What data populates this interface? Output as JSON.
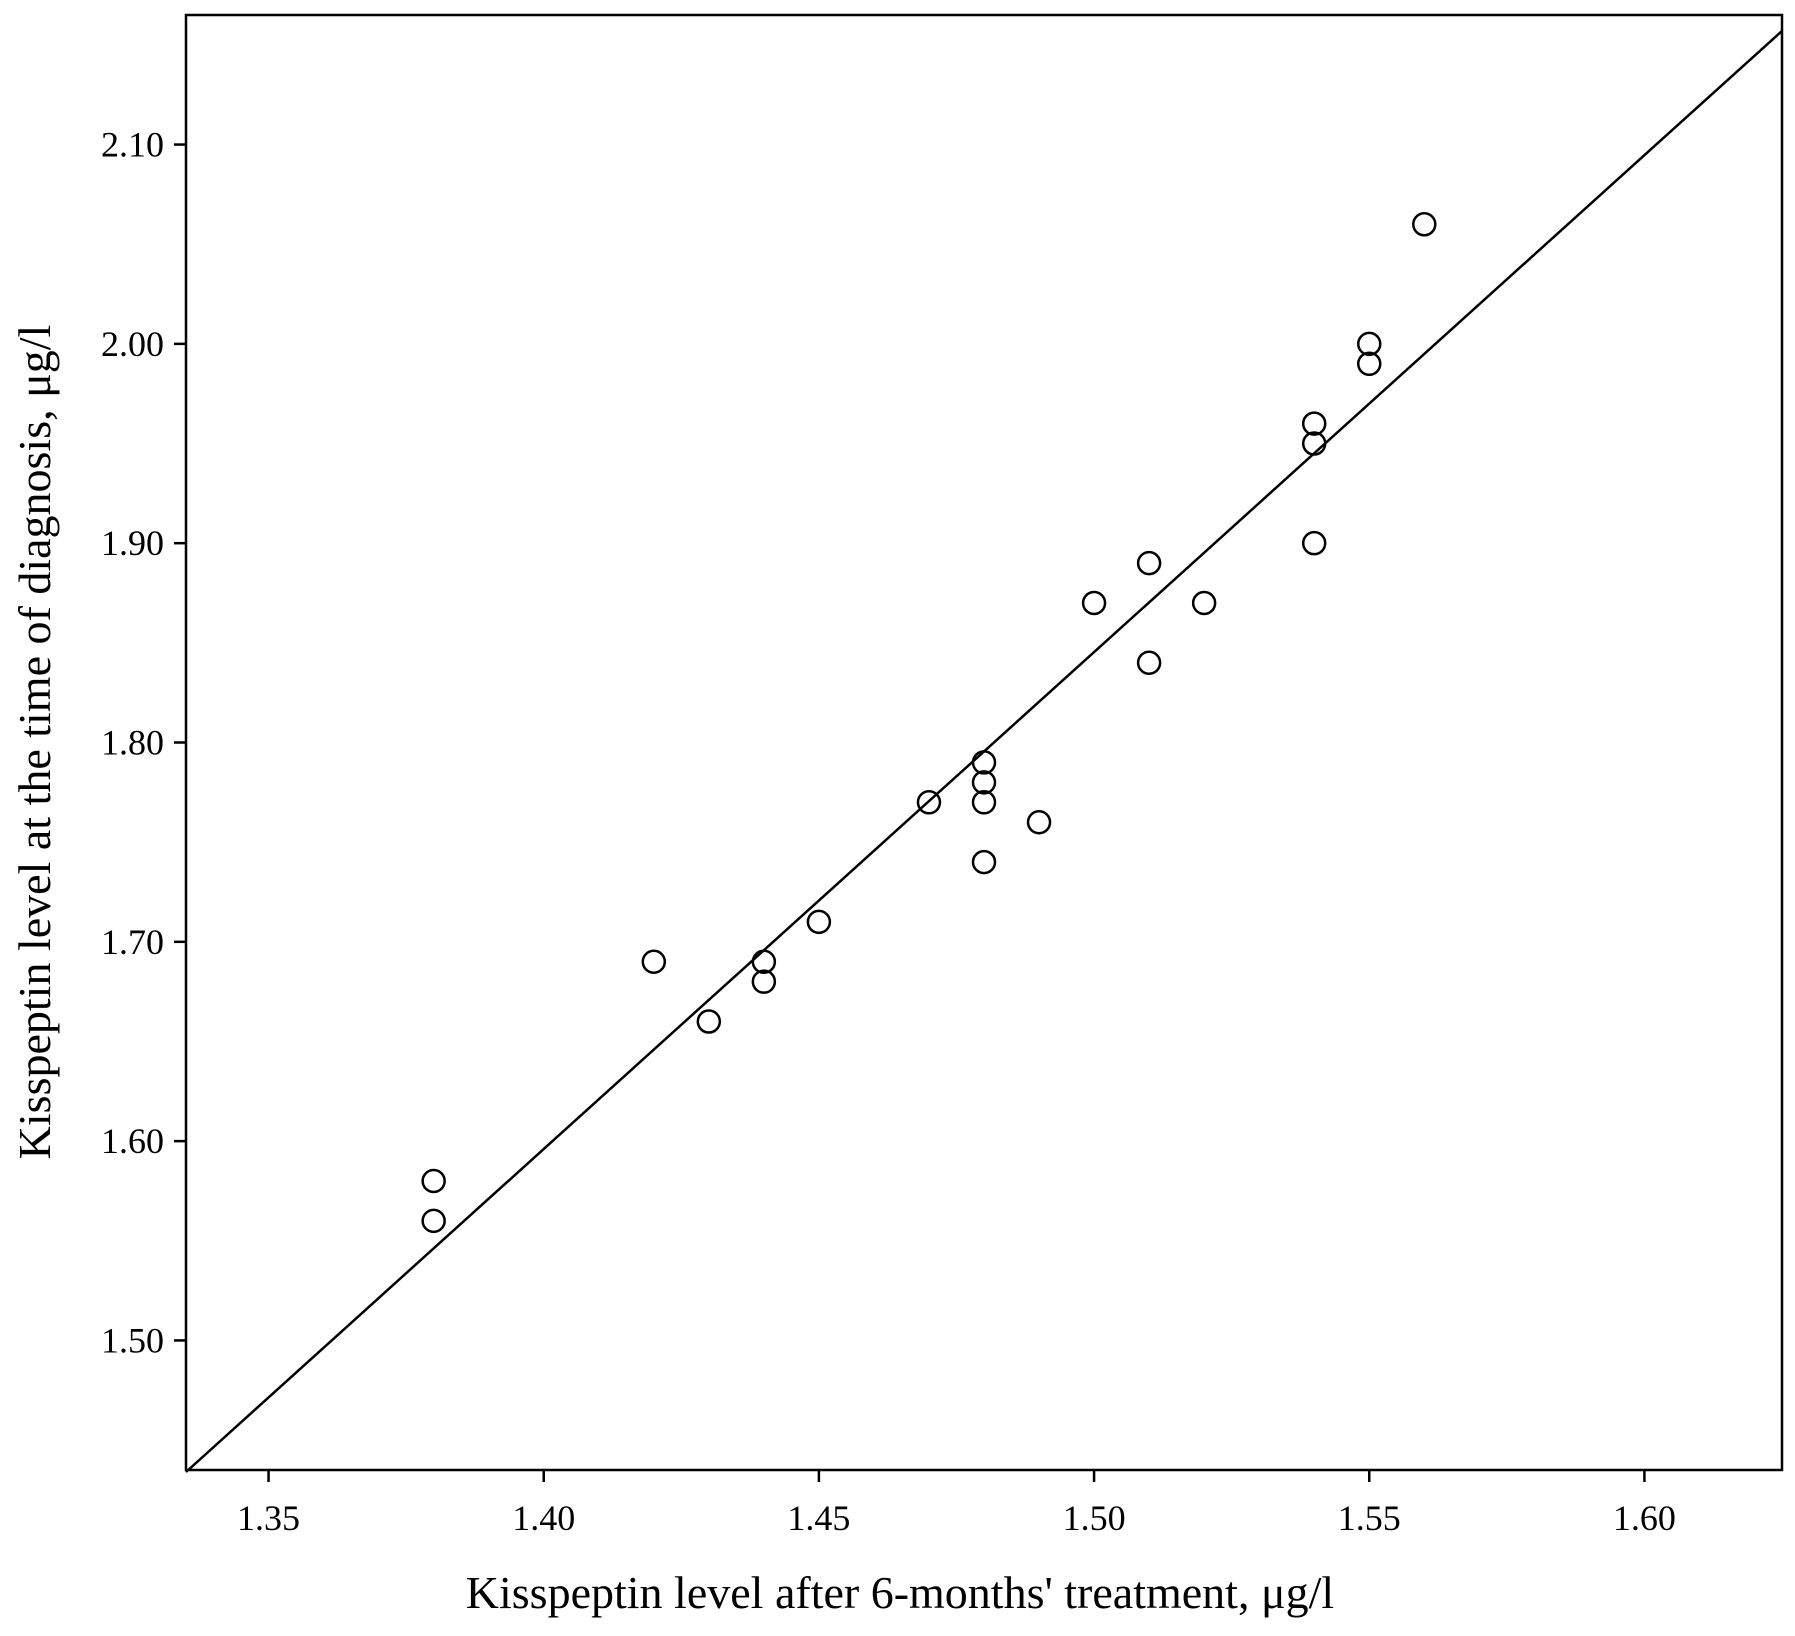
{
  "chart_data": {
    "type": "scatter",
    "title": "",
    "xlabel": "Kisspeptin level after 6-months' treatment, μg/l",
    "ylabel": "Kisspeptin level at the time of diagnosis, μg/l",
    "xlim": [
      1.335,
      1.625
    ],
    "ylim": [
      1.435,
      2.165
    ],
    "x_ticks": [
      {
        "value": 1.35,
        "label": "1.35"
      },
      {
        "value": 1.4,
        "label": "1.40"
      },
      {
        "value": 1.45,
        "label": "1.45"
      },
      {
        "value": 1.5,
        "label": "1.50"
      },
      {
        "value": 1.55,
        "label": "1.55"
      },
      {
        "value": 1.6,
        "label": "1.60"
      }
    ],
    "y_ticks": [
      {
        "value": 1.5,
        "label": "1.50"
      },
      {
        "value": 1.6,
        "label": "1.60"
      },
      {
        "value": 1.7,
        "label": "1.70"
      },
      {
        "value": 1.8,
        "label": "1.80"
      },
      {
        "value": 1.9,
        "label": "1.90"
      },
      {
        "value": 2.0,
        "label": "2.00"
      },
      {
        "value": 2.1,
        "label": "2.10"
      }
    ],
    "grid": false,
    "legend": "none",
    "marker": "open-circle",
    "marker_color": "#000000",
    "points": [
      {
        "x": 1.38,
        "y": 1.58
      },
      {
        "x": 1.38,
        "y": 1.56
      },
      {
        "x": 1.42,
        "y": 1.69
      },
      {
        "x": 1.43,
        "y": 1.66
      },
      {
        "x": 1.44,
        "y": 1.69
      },
      {
        "x": 1.44,
        "y": 1.68
      },
      {
        "x": 1.45,
        "y": 1.71
      },
      {
        "x": 1.47,
        "y": 1.77
      },
      {
        "x": 1.48,
        "y": 1.79
      },
      {
        "x": 1.48,
        "y": 1.78
      },
      {
        "x": 1.48,
        "y": 1.77
      },
      {
        "x": 1.48,
        "y": 1.74
      },
      {
        "x": 1.49,
        "y": 1.76
      },
      {
        "x": 1.5,
        "y": 1.87
      },
      {
        "x": 1.51,
        "y": 1.89
      },
      {
        "x": 1.51,
        "y": 1.84
      },
      {
        "x": 1.52,
        "y": 1.87
      },
      {
        "x": 1.54,
        "y": 1.96
      },
      {
        "x": 1.54,
        "y": 1.95
      },
      {
        "x": 1.54,
        "y": 1.9
      },
      {
        "x": 1.55,
        "y": 2.0
      },
      {
        "x": 1.55,
        "y": 1.99
      },
      {
        "x": 1.56,
        "y": 2.06
      }
    ],
    "fit_line": {
      "type": "linear",
      "color": "#000000",
      "start": {
        "x": 1.335,
        "y": 1.434
      },
      "end": {
        "x": 1.625,
        "y": 2.157
      }
    }
  }
}
